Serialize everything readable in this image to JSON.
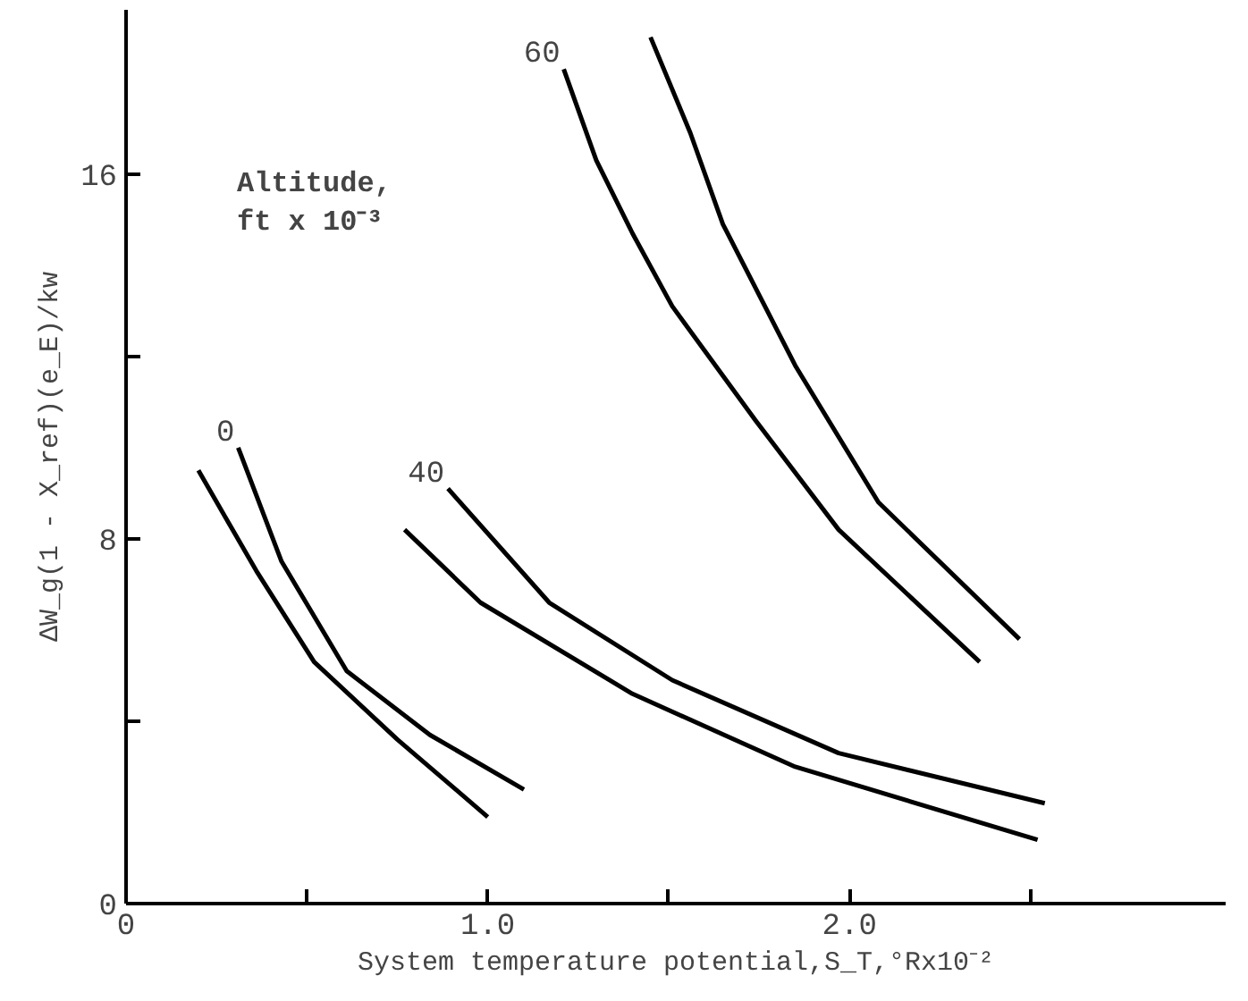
{
  "chart_data": {
    "type": "line",
    "xlabel": "System temperature potential,S_T,°Rx10⁻²",
    "ylabel": "ΔW_g(1 - X_ref)(e_E)/kw",
    "xlim": [
      0,
      3.04
    ],
    "ylim": [
      0,
      19.6
    ],
    "xticks": [
      0,
      {
        "value": 0.5,
        "label": null
      },
      {
        "value": 1.0,
        "label": "1.0"
      },
      {
        "value": 1.5,
        "label": null
      },
      {
        "value": 2.0,
        "label": "2.0"
      },
      {
        "value": 2.5,
        "label": null
      }
    ],
    "yticks": [
      0,
      {
        "value": 4,
        "label": null
      },
      8,
      {
        "value": 12,
        "label": null
      },
      16
    ],
    "grid": false,
    "legend": false,
    "marker": "none",
    "line_style": "solid",
    "series": [
      {
        "name": "0",
        "color": "#000000",
        "x": [
          0.31,
          0.43,
          0.61,
          0.84,
          1.1
        ],
        "values": [
          10.0,
          7.5,
          5.1,
          3.7,
          2.5
        ]
      },
      {
        "color": "#000000",
        "x": [
          0.2,
          0.36,
          0.52,
          0.75,
          1.0
        ],
        "values": [
          9.5,
          7.3,
          5.3,
          3.6,
          1.9
        ]
      },
      {
        "name": "40",
        "color": "#000000",
        "x": [
          0.89,
          1.17,
          1.51,
          1.97,
          2.54
        ],
        "values": [
          9.1,
          6.6,
          4.9,
          3.3,
          2.2
        ]
      },
      {
        "color": "#000000",
        "x": [
          0.77,
          0.98,
          1.4,
          1.85,
          2.52
        ],
        "values": [
          8.2,
          6.6,
          4.6,
          3.0,
          1.4
        ]
      },
      {
        "color": "#000000",
        "x": [
          1.45,
          1.56,
          1.65,
          1.85,
          2.08,
          2.47
        ],
        "values": [
          19.0,
          16.9,
          14.9,
          11.8,
          8.8,
          5.8
        ]
      },
      {
        "name": "60",
        "color": "#000000",
        "x": [
          1.21,
          1.3,
          1.4,
          1.51,
          1.74,
          1.97,
          2.36
        ],
        "values": [
          18.3,
          16.3,
          14.7,
          13.1,
          10.6,
          8.2,
          5.3
        ]
      }
    ],
    "annotations": [
      "Altitude,\nft x 10⁻³"
    ]
  }
}
